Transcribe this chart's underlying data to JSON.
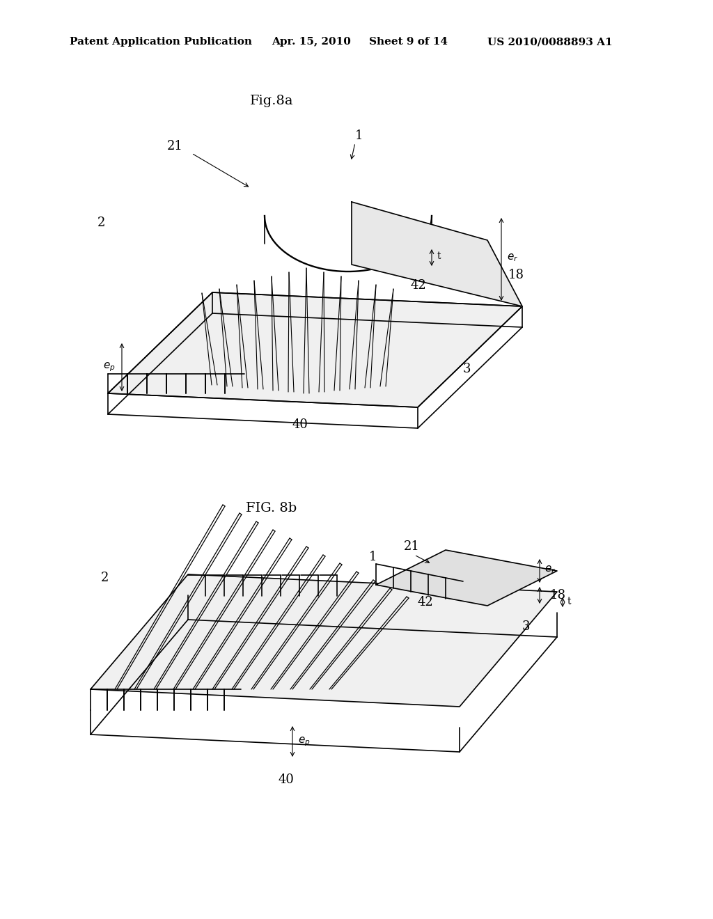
{
  "background_color": "#ffffff",
  "header_text": "Patent Application Publication",
  "header_date": "Apr. 15, 2010",
  "header_sheet": "Sheet 9 of 14",
  "header_patent": "US 2010/0088893 A1",
  "fig8a_title": "Fig.8a",
  "fig8b_title": "FIG. 8b",
  "line_color": "#000000",
  "line_width": 1.2,
  "font_size_header": 11,
  "font_size_label": 13,
  "font_size_title": 14
}
